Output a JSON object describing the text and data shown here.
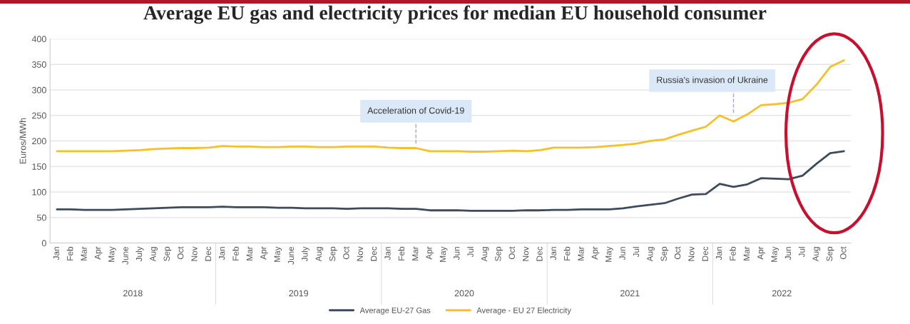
{
  "chart_data": {
    "type": "line",
    "title": "Average EU gas and electricity prices for median EU household consumer",
    "ylabel": "Euros/MWh",
    "categories": [
      "Jan",
      "Feb",
      "Mar",
      "Apr",
      "May",
      "June",
      "July",
      "Aug",
      "Sep",
      "Oct",
      "Nov",
      "Dec",
      "Jan",
      "Feb",
      "Mar",
      "Apr",
      "May",
      "June",
      "July",
      "Aug",
      "Sep",
      "Oct",
      "Nov",
      "Dec",
      "Jan",
      "Feb",
      "Mar",
      "Apr",
      "May",
      "Jun",
      "Jul",
      "Aug",
      "Sep",
      "Oct",
      "Nov",
      "Dec",
      "Jan",
      "Feb",
      "Mar",
      "Apr",
      "May",
      "Jun",
      "Jul",
      "Aug",
      "Sep",
      "Oct",
      "Nov",
      "Dec",
      "Jan",
      "Feb",
      "Mar",
      "Apr",
      "May",
      "Jun",
      "Jul",
      "Aug",
      "Sep",
      "Oct"
    ],
    "series": [
      {
        "name": "Average EU-27 Gas",
        "color": "#3d4b5c",
        "values": [
          66,
          66,
          65,
          65,
          65,
          66,
          67,
          68,
          69,
          70,
          70,
          70,
          71,
          70,
          70,
          70,
          69,
          69,
          68,
          68,
          68,
          67,
          68,
          68,
          68,
          67,
          67,
          64,
          64,
          64,
          63,
          63,
          63,
          63,
          64,
          64,
          65,
          65,
          66,
          66,
          66,
          68,
          72,
          75,
          78,
          87,
          95,
          96,
          116,
          110,
          115,
          127,
          126,
          125,
          132,
          155,
          176,
          180
        ]
      },
      {
        "name": "Average - EU 27 Electricity",
        "color": "#f5c02a",
        "values": [
          180,
          180,
          180,
          180,
          180,
          181,
          182,
          184,
          185,
          186,
          186,
          187,
          190,
          189,
          189,
          188,
          188,
          189,
          189,
          188,
          188,
          189,
          189,
          189,
          187,
          186,
          186,
          180,
          180,
          180,
          179,
          179,
          180,
          181,
          180,
          182,
          187,
          187,
          187,
          188,
          190,
          192,
          195,
          200,
          203,
          212,
          220,
          228,
          250,
          238,
          252,
          270,
          272,
          275,
          282,
          310,
          345,
          358
        ]
      }
    ],
    "ylim": [
      0,
      400
    ],
    "yticks": [
      0,
      50,
      100,
      150,
      200,
      250,
      300,
      350,
      400
    ],
    "grid": "y",
    "legend": "bottom",
    "marker": "none",
    "line_style": "solid",
    "annotations": [
      "Acceleration of Covid-19",
      "Russia's invasion of Ukraine",
      "2018",
      "2019",
      "2020",
      "2021",
      "2022"
    ]
  }
}
